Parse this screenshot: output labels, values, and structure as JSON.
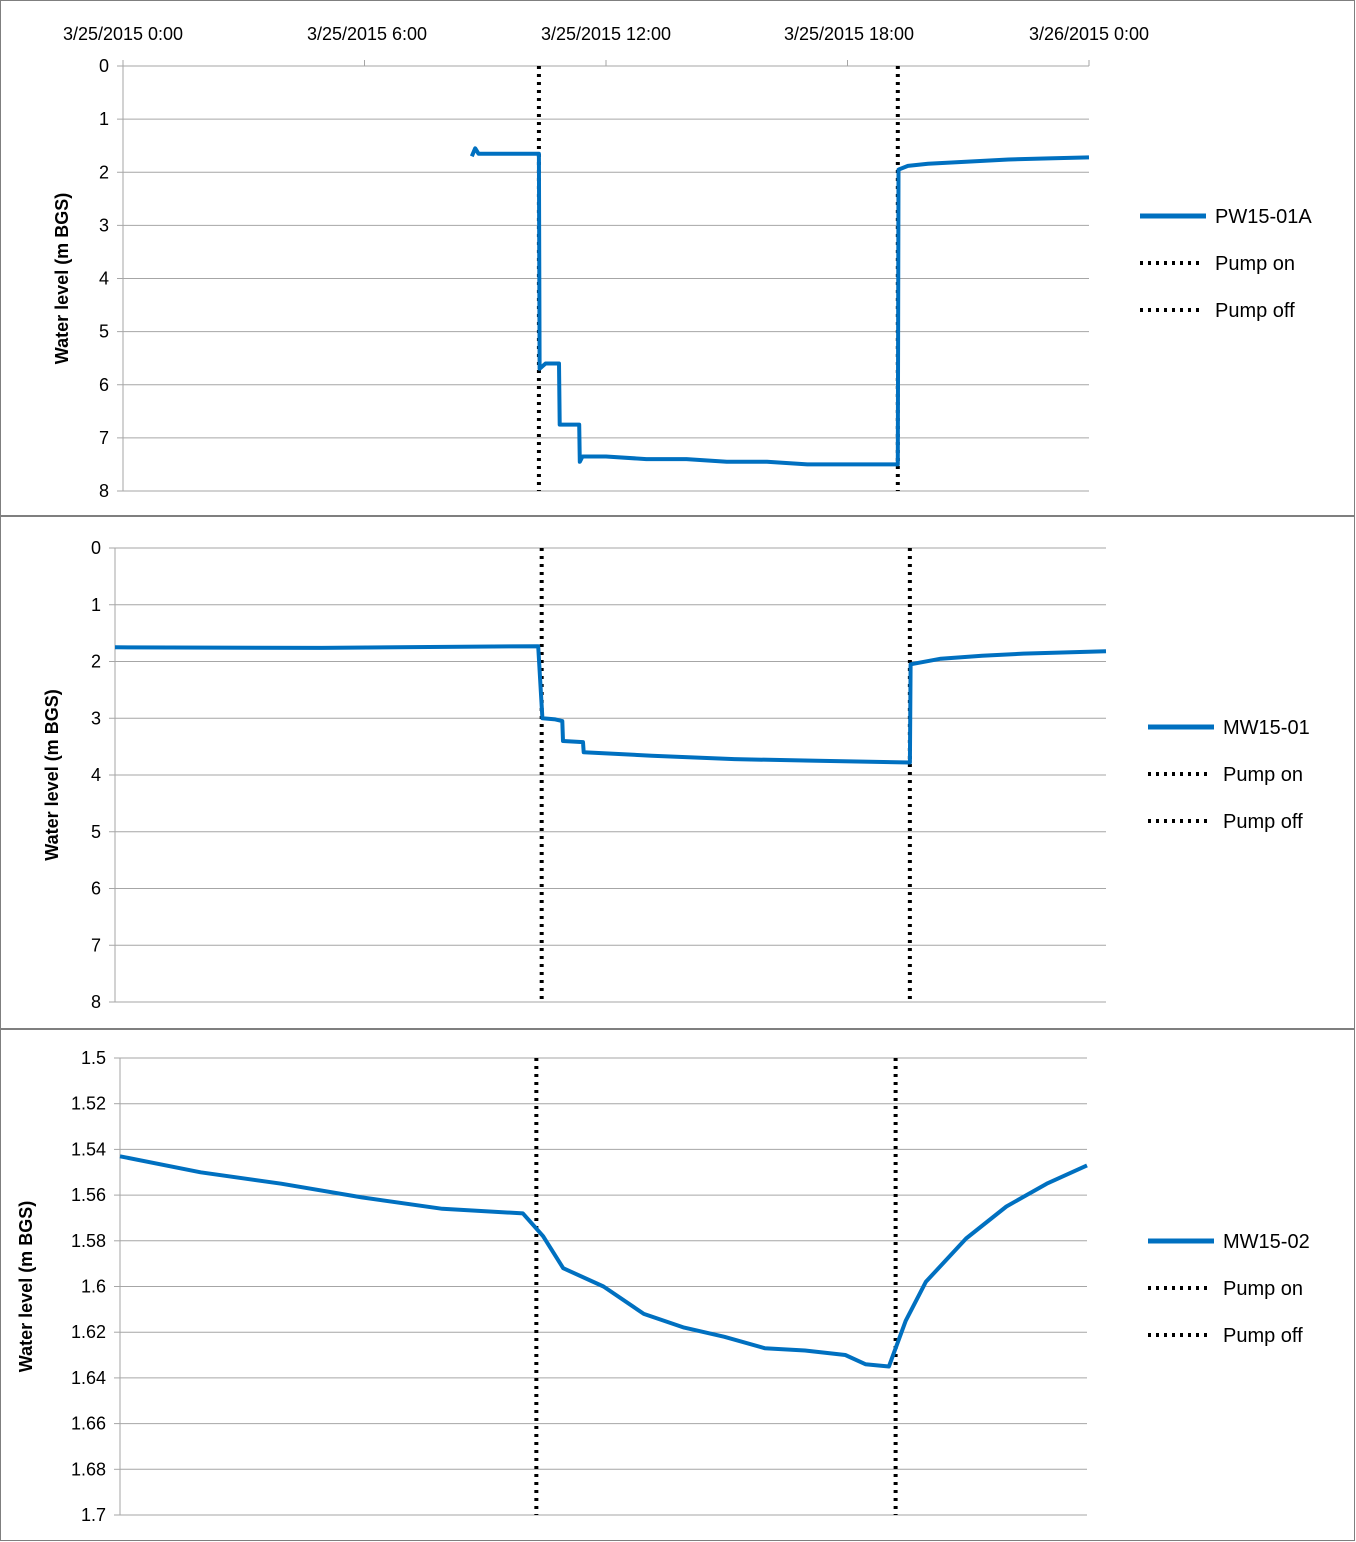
{
  "x_axis_labels": [
    "3/25/2015 0:00",
    "3/25/2015 6:00",
    "3/25/2015 12:00",
    "3/25/2015 18:00",
    "3/26/2015 0:00"
  ],
  "colors": {
    "series": "#0070C0",
    "marker": "#000000",
    "grid": "#A6A6A6",
    "panel_border": "#7F7F7F"
  },
  "chart_data": [
    {
      "type": "line",
      "ylabel": "Water level (m BGS)",
      "ylim": [
        0,
        8
      ],
      "y_inverted": true,
      "yticks": [
        "0",
        "1",
        "2",
        "3",
        "4",
        "5",
        "6",
        "7",
        "8"
      ],
      "xlim": [
        "3/25/2015 0:00",
        "3/26/2015 0:00"
      ],
      "x_tick_labels_shown": true,
      "grid": "horizontal",
      "legend_position": "right",
      "series": [
        {
          "name": "PW15-01A",
          "style": "solid",
          "points": [
            [
              "3/25/2015 8:40",
              1.7
            ],
            [
              "3/25/2015 8:45",
              1.55
            ],
            [
              "3/25/2015 8:50",
              1.65
            ],
            [
              "3/25/2015 10:15",
              1.65
            ],
            [
              "3/25/2015 10:20",
              1.65
            ],
            [
              "3/25/2015 10:21",
              5.7
            ],
            [
              "3/25/2015 10:30",
              5.6
            ],
            [
              "3/25/2015 10:50",
              5.6
            ],
            [
              "3/25/2015 10:51",
              6.75
            ],
            [
              "3/25/2015 11:20",
              6.75
            ],
            [
              "3/25/2015 11:21",
              7.45
            ],
            [
              "3/25/2015 11:25",
              7.35
            ],
            [
              "3/25/2015 12:00",
              7.35
            ],
            [
              "3/25/2015 13:00",
              7.4
            ],
            [
              "3/25/2015 14:00",
              7.4
            ],
            [
              "3/25/2015 15:00",
              7.45
            ],
            [
              "3/25/2015 16:00",
              7.45
            ],
            [
              "3/25/2015 17:00",
              7.5
            ],
            [
              "3/25/2015 19:15",
              7.5
            ],
            [
              "3/25/2015 19:16",
              1.95
            ],
            [
              "3/25/2015 19:30",
              1.88
            ],
            [
              "3/25/2015 20:00",
              1.84
            ],
            [
              "3/25/2015 21:00",
              1.8
            ],
            [
              "3/25/2015 22:00",
              1.76
            ],
            [
              "3/25/2015 23:00",
              1.74
            ],
            [
              "3/26/2015 0:00",
              1.72
            ]
          ]
        },
        {
          "name": "Pump on",
          "style": "dotted",
          "x": "3/25/2015 10:20"
        },
        {
          "name": "Pump off",
          "style": "dotted",
          "x": "3/25/2015 19:15"
        }
      ]
    },
    {
      "type": "line",
      "ylabel": "Water level (m BGS)",
      "ylim": [
        0,
        8
      ],
      "y_inverted": true,
      "yticks": [
        "0",
        "1",
        "2",
        "3",
        "4",
        "5",
        "6",
        "7",
        "8"
      ],
      "xlim": [
        "3/25/2015 0:00",
        "3/26/2015 0:00"
      ],
      "x_tick_labels_shown": false,
      "grid": "horizontal",
      "legend_position": "right",
      "series": [
        {
          "name": "MW15-01",
          "style": "solid",
          "points": [
            [
              "3/25/2015 0:00",
              1.75
            ],
            [
              "3/25/2015 5:00",
              1.76
            ],
            [
              "3/25/2015 10:15",
              1.73
            ],
            [
              "3/25/2015 10:21",
              3.0
            ],
            [
              "3/25/2015 10:40",
              3.02
            ],
            [
              "3/25/2015 10:50",
              3.05
            ],
            [
              "3/25/2015 10:51",
              3.4
            ],
            [
              "3/25/2015 11:20",
              3.42
            ],
            [
              "3/25/2015 11:21",
              3.6
            ],
            [
              "3/25/2015 13:00",
              3.66
            ],
            [
              "3/25/2015 15:00",
              3.72
            ],
            [
              "3/25/2015 17:00",
              3.75
            ],
            [
              "3/25/2015 19:15",
              3.78
            ],
            [
              "3/25/2015 19:16",
              2.05
            ],
            [
              "3/25/2015 20:00",
              1.95
            ],
            [
              "3/25/2015 21:00",
              1.9
            ],
            [
              "3/25/2015 22:00",
              1.86
            ],
            [
              "3/26/2015 0:00",
              1.82
            ]
          ]
        },
        {
          "name": "Pump on",
          "style": "dotted",
          "x": "3/25/2015 10:20"
        },
        {
          "name": "Pump off",
          "style": "dotted",
          "x": "3/25/2015 19:15"
        }
      ]
    },
    {
      "type": "line",
      "ylabel": "Water level (m BGS)",
      "ylim": [
        1.5,
        1.7
      ],
      "y_inverted": true,
      "yticks": [
        "1.5",
        "1.52",
        "1.54",
        "1.56",
        "1.58",
        "1.6",
        "1.62",
        "1.64",
        "1.66",
        "1.68",
        "1.7"
      ],
      "xlim": [
        "3/25/2015 0:00",
        "3/26/2015 0:00"
      ],
      "x_tick_labels_shown": false,
      "grid": "horizontal",
      "legend_position": "right",
      "series": [
        {
          "name": "MW15-02",
          "style": "solid",
          "points": [
            [
              "3/25/2015 0:00",
              1.543
            ],
            [
              "3/25/2015 2:00",
              1.55
            ],
            [
              "3/25/2015 4:00",
              1.555
            ],
            [
              "3/25/2015 6:00",
              1.561
            ],
            [
              "3/25/2015 8:00",
              1.566
            ],
            [
              "3/25/2015 10:00",
              1.568
            ],
            [
              "3/25/2015 10:30",
              1.578
            ],
            [
              "3/25/2015 11:00",
              1.592
            ],
            [
              "3/25/2015 12:00",
              1.6
            ],
            [
              "3/25/2015 13:00",
              1.612
            ],
            [
              "3/25/2015 14:00",
              1.618
            ],
            [
              "3/25/2015 15:00",
              1.622
            ],
            [
              "3/25/2015 16:00",
              1.627
            ],
            [
              "3/25/2015 17:00",
              1.628
            ],
            [
              "3/25/2015 18:00",
              1.63
            ],
            [
              "3/25/2015 18:30",
              1.634
            ],
            [
              "3/25/2015 19:05",
              1.635
            ],
            [
              "3/25/2015 19:30",
              1.615
            ],
            [
              "3/25/2015 20:00",
              1.598
            ],
            [
              "3/25/2015 21:00",
              1.579
            ],
            [
              "3/25/2015 22:00",
              1.565
            ],
            [
              "3/25/2015 23:00",
              1.555
            ],
            [
              "3/26/2015 0:00",
              1.547
            ]
          ]
        },
        {
          "name": "Pump on",
          "style": "dotted",
          "x": "3/25/2015 10:20"
        },
        {
          "name": "Pump off",
          "style": "dotted",
          "x": "3/25/2015 19:15"
        }
      ]
    }
  ]
}
